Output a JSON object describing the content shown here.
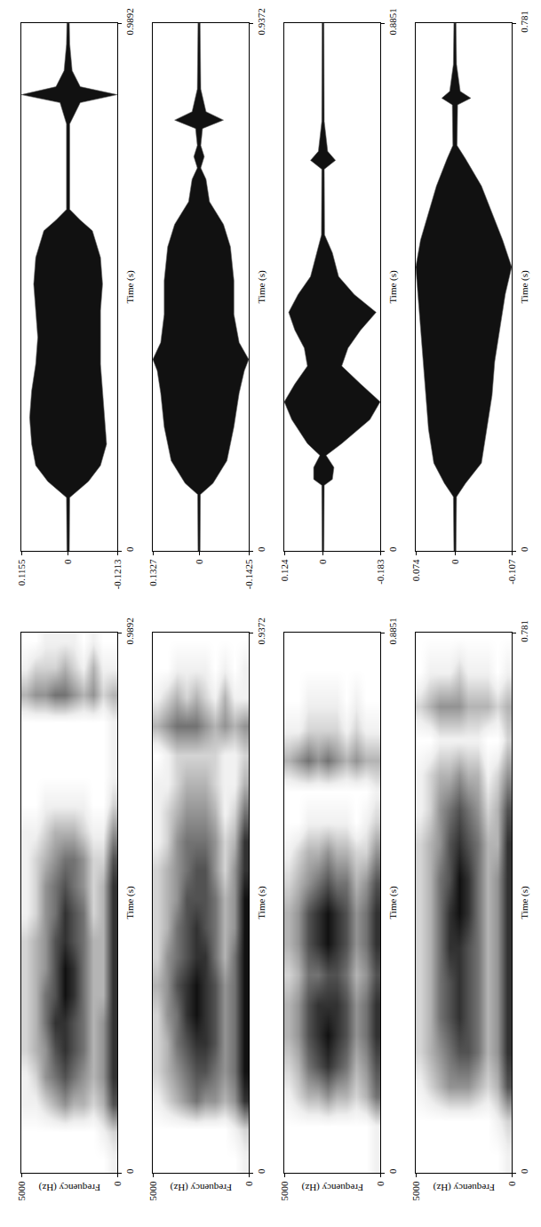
{
  "chart_data": [
    {
      "type": "waveform",
      "xlabel": "Time (s)",
      "color": "#111111",
      "x": [
        0,
        0.1,
        0.13,
        0.16,
        0.2,
        0.25,
        0.3,
        0.35,
        0.4,
        0.45,
        0.5,
        0.55,
        0.6,
        0.62,
        0.64,
        0.8,
        0.84,
        0.855,
        0.87,
        0.9,
        0.95,
        0.9892
      ],
      "upper": [
        0.003,
        0.004,
        0.05,
        0.08,
        0.09,
        0.095,
        0.09,
        0.08,
        0.075,
        0.08,
        0.085,
        0.08,
        0.06,
        0.03,
        0.004,
        0.004,
        0.02,
        0.1155,
        0.03,
        0.01,
        0.004,
        0.003
      ],
      "lower": [
        -0.003,
        -0.004,
        -0.05,
        -0.08,
        -0.095,
        -0.09,
        -0.085,
        -0.08,
        -0.08,
        -0.08,
        -0.085,
        -0.08,
        -0.06,
        -0.03,
        -0.004,
        -0.004,
        -0.03,
        -0.1213,
        -0.03,
        -0.01,
        -0.004,
        -0.003
      ],
      "xlim": [
        0,
        0.9892
      ],
      "xticks": [
        0,
        0.9892
      ],
      "ylim": [
        -0.1213,
        0.1155
      ],
      "yticks": [
        -0.1213,
        0,
        0.1155
      ]
    },
    {
      "type": "waveform",
      "xlabel": "Time (s)",
      "color": "#111111",
      "x": [
        0,
        0.1,
        0.12,
        0.16,
        0.22,
        0.28,
        0.32,
        0.34,
        0.37,
        0.42,
        0.48,
        0.54,
        0.58,
        0.62,
        0.66,
        0.68,
        0.7,
        0.72,
        0.75,
        0.765,
        0.78,
        0.82,
        0.9372
      ],
      "upper": [
        0.003,
        0.004,
        0.04,
        0.08,
        0.1,
        0.11,
        0.12,
        0.1327,
        0.11,
        0.1,
        0.1,
        0.09,
        0.07,
        0.03,
        0.02,
        0.005,
        0.015,
        0.005,
        0.01,
        0.07,
        0.02,
        0.005,
        0.003
      ],
      "lower": [
        -0.003,
        -0.004,
        -0.04,
        -0.08,
        -0.1,
        -0.115,
        -0.13,
        -0.1425,
        -0.115,
        -0.1,
        -0.1,
        -0.09,
        -0.07,
        -0.03,
        -0.02,
        -0.005,
        -0.015,
        -0.005,
        -0.01,
        -0.07,
        -0.02,
        -0.005,
        -0.003
      ],
      "xlim": [
        0,
        0.9372
      ],
      "xticks": [
        0,
        0.9372
      ],
      "ylim": [
        -0.1425,
        0.1327
      ],
      "yticks": [
        -0.1425,
        0,
        0.1327
      ]
    },
    {
      "type": "waveform",
      "xlabel": "Time (s)",
      "color": "#111111",
      "x": [
        0,
        0.11,
        0.12,
        0.14,
        0.16,
        0.18,
        0.22,
        0.25,
        0.28,
        0.31,
        0.34,
        0.37,
        0.4,
        0.43,
        0.46,
        0.5,
        0.53,
        0.64,
        0.655,
        0.67,
        0.72,
        0.8851
      ],
      "upper": [
        0.003,
        0.004,
        0.03,
        0.03,
        0.01,
        0.05,
        0.1,
        0.124,
        0.09,
        0.05,
        0.06,
        0.09,
        0.11,
        0.08,
        0.04,
        0.02,
        0.005,
        0.004,
        0.04,
        0.015,
        0.004,
        0.003
      ],
      "lower": [
        -0.003,
        -0.004,
        -0.03,
        -0.035,
        -0.01,
        -0.06,
        -0.15,
        -0.183,
        -0.12,
        -0.06,
        -0.08,
        -0.12,
        -0.17,
        -0.1,
        -0.05,
        -0.03,
        -0.005,
        -0.004,
        -0.04,
        -0.015,
        -0.004,
        -0.003
      ],
      "xlim": [
        0,
        0.8851
      ],
      "xticks": [
        0,
        0.8851
      ],
      "ylim": [
        -0.183,
        0.124
      ],
      "yticks": [
        -0.183,
        0,
        0.124
      ]
    },
    {
      "type": "waveform",
      "xlabel": "Time (s)",
      "color": "#111111",
      "x": [
        0,
        0.08,
        0.1,
        0.13,
        0.18,
        0.23,
        0.28,
        0.33,
        0.38,
        0.42,
        0.46,
        0.5,
        0.54,
        0.58,
        0.6,
        0.66,
        0.67,
        0.68,
        0.72,
        0.781
      ],
      "upper": [
        0.002,
        0.003,
        0.02,
        0.04,
        0.05,
        0.055,
        0.06,
        0.065,
        0.07,
        0.074,
        0.065,
        0.05,
        0.035,
        0.015,
        0.004,
        0.005,
        0.025,
        0.01,
        0.003,
        0.002
      ],
      "lower": [
        -0.002,
        -0.003,
        -0.02,
        -0.05,
        -0.06,
        -0.07,
        -0.075,
        -0.085,
        -0.095,
        -0.107,
        -0.09,
        -0.07,
        -0.05,
        -0.02,
        -0.004,
        -0.005,
        -0.03,
        -0.01,
        -0.003,
        -0.002
      ],
      "xlim": [
        0,
        0.781
      ],
      "xticks": [
        0,
        0.781
      ],
      "ylim": [
        -0.107,
        0.074
      ],
      "yticks": [
        -0.107,
        0,
        0.074
      ]
    },
    {
      "type": "spectrogram",
      "xlabel": "Time (s)",
      "ylabel": "Frequency (Hz)",
      "x": [
        0.025,
        0.075,
        0.125,
        0.175,
        0.225,
        0.275,
        0.325,
        0.375,
        0.425,
        0.475,
        0.525,
        0.575,
        0.625,
        0.675,
        0.725,
        0.775,
        0.825,
        0.875,
        0.925,
        0.975
      ],
      "y": [
        250,
        750,
        1250,
        1750,
        2250,
        2750,
        3250,
        3750,
        4250,
        4750
      ],
      "cells": [
        [
          1,
          0,
          0,
          0,
          0,
          0,
          0,
          0,
          0,
          0
        ],
        [
          2,
          1,
          0,
          0,
          0,
          0,
          0,
          0,
          0,
          0
        ],
        [
          6,
          3,
          2,
          3,
          3,
          4,
          3,
          2,
          1,
          1
        ],
        [
          7,
          4,
          3,
          4,
          5,
          6,
          5,
          4,
          2,
          1
        ],
        [
          7,
          4,
          3,
          5,
          6,
          7,
          6,
          4,
          3,
          2
        ],
        [
          7,
          4,
          3,
          5,
          6,
          7,
          7,
          5,
          3,
          2
        ],
        [
          7,
          3,
          3,
          5,
          7,
          8,
          6,
          5,
          3,
          2
        ],
        [
          7,
          3,
          3,
          5,
          7,
          8,
          6,
          4,
          3,
          2
        ],
        [
          7,
          3,
          3,
          5,
          6,
          7,
          6,
          4,
          3,
          2
        ],
        [
          7,
          3,
          2,
          5,
          6,
          7,
          5,
          4,
          2,
          1
        ],
        [
          7,
          3,
          2,
          4,
          5,
          6,
          5,
          4,
          2,
          1
        ],
        [
          6,
          2,
          2,
          4,
          5,
          5,
          4,
          3,
          2,
          1
        ],
        [
          4,
          1,
          1,
          2,
          3,
          3,
          3,
          2,
          1,
          1
        ],
        [
          2,
          0,
          0,
          1,
          1,
          1,
          1,
          1,
          0,
          0
        ],
        [
          1,
          0,
          0,
          0,
          0,
          0,
          0,
          0,
          0,
          0
        ],
        [
          1,
          0,
          0,
          0,
          0,
          0,
          0,
          0,
          0,
          0
        ],
        [
          1,
          0,
          0,
          0,
          0,
          0,
          0,
          0,
          0,
          0
        ],
        [
          3,
          2,
          4,
          3,
          4,
          5,
          5,
          4,
          4,
          3
        ],
        [
          1,
          1,
          3,
          1,
          2,
          3,
          2,
          2,
          2,
          1
        ],
        [
          0,
          0,
          1,
          0,
          1,
          1,
          1,
          1,
          0,
          0
        ]
      ],
      "xlim": [
        0,
        0.9892
      ],
      "xticks": [
        0,
        0.9892
      ],
      "ylim": [
        0,
        5000
      ],
      "yticks": [
        0,
        5000
      ]
    },
    {
      "type": "spectrogram",
      "xlabel": "Time (s)",
      "ylabel": "Frequency (Hz)",
      "x": [
        0.025,
        0.075,
        0.125,
        0.175,
        0.225,
        0.275,
        0.325,
        0.375,
        0.425,
        0.475,
        0.525,
        0.575,
        0.625,
        0.675,
        0.725,
        0.775,
        0.825,
        0.875,
        0.925
      ],
      "y": [
        250,
        750,
        1250,
        1750,
        2250,
        2750,
        3250,
        3750,
        4250,
        4750
      ],
      "cells": [
        [
          1,
          0,
          0,
          0,
          0,
          0,
          0,
          0,
          0,
          0
        ],
        [
          2,
          1,
          0,
          0,
          0,
          0,
          0,
          0,
          0,
          0
        ],
        [
          7,
          4,
          3,
          4,
          4,
          5,
          4,
          3,
          2,
          1
        ],
        [
          8,
          5,
          4,
          5,
          6,
          6,
          5,
          4,
          3,
          2
        ],
        [
          8,
          5,
          4,
          6,
          7,
          7,
          6,
          5,
          3,
          2
        ],
        [
          8,
          5,
          4,
          6,
          7,
          8,
          7,
          5,
          4,
          2
        ],
        [
          8,
          5,
          4,
          6,
          7,
          8,
          7,
          6,
          4,
          3
        ],
        [
          8,
          5,
          3,
          5,
          7,
          7,
          6,
          5,
          4,
          2
        ],
        [
          8,
          4,
          3,
          5,
          6,
          7,
          6,
          5,
          3,
          2
        ],
        [
          8,
          4,
          3,
          5,
          6,
          6,
          6,
          4,
          3,
          2
        ],
        [
          7,
          4,
          2,
          4,
          6,
          6,
          5,
          4,
          3,
          2
        ],
        [
          7,
          3,
          2,
          4,
          5,
          5,
          5,
          4,
          2,
          1
        ],
        [
          5,
          2,
          1,
          3,
          4,
          4,
          4,
          3,
          2,
          1
        ],
        [
          3,
          1,
          1,
          2,
          3,
          3,
          3,
          2,
          1,
          1
        ],
        [
          2,
          1,
          1,
          2,
          2,
          2,
          2,
          2,
          1,
          0
        ],
        [
          4,
          3,
          4,
          3,
          4,
          5,
          5,
          5,
          4,
          3
        ],
        [
          1,
          1,
          3,
          1,
          2,
          3,
          2,
          3,
          2,
          1
        ],
        [
          1,
          0,
          1,
          0,
          1,
          1,
          1,
          1,
          0,
          0
        ],
        [
          0,
          0,
          0,
          0,
          0,
          0,
          0,
          0,
          0,
          0
        ]
      ],
      "xlim": [
        0,
        0.9372
      ],
      "xticks": [
        0,
        0.9372
      ],
      "ylim": [
        0,
        5000
      ],
      "yticks": [
        0,
        5000
      ]
    },
    {
      "type": "spectrogram",
      "xlabel": "Time (s)",
      "ylabel": "Frequency (Hz)",
      "x": [
        0.025,
        0.075,
        0.125,
        0.175,
        0.225,
        0.275,
        0.325,
        0.375,
        0.425,
        0.475,
        0.525,
        0.575,
        0.625,
        0.675,
        0.725,
        0.775,
        0.825,
        0.875
      ],
      "y": [
        250,
        750,
        1250,
        1750,
        2250,
        2750,
        3250,
        3750,
        4250,
        4750
      ],
      "cells": [
        [
          1,
          0,
          0,
          0,
          0,
          0,
          0,
          0,
          0,
          0
        ],
        [
          1,
          0,
          0,
          0,
          0,
          0,
          0,
          0,
          0,
          0
        ],
        [
          5,
          3,
          2,
          3,
          3,
          4,
          3,
          3,
          2,
          1
        ],
        [
          6,
          4,
          3,
          5,
          6,
          7,
          6,
          5,
          3,
          2
        ],
        [
          7,
          5,
          4,
          6,
          7,
          8,
          7,
          6,
          4,
          3
        ],
        [
          7,
          5,
          4,
          6,
          7,
          7,
          7,
          6,
          4,
          3
        ],
        [
          6,
          4,
          3,
          5,
          6,
          6,
          5,
          5,
          3,
          2
        ],
        [
          7,
          5,
          4,
          6,
          7,
          8,
          7,
          6,
          4,
          3
        ],
        [
          7,
          5,
          4,
          6,
          7,
          8,
          7,
          6,
          4,
          3
        ],
        [
          6,
          4,
          3,
          5,
          5,
          6,
          5,
          4,
          3,
          2
        ],
        [
          4,
          2,
          2,
          3,
          3,
          4,
          3,
          3,
          2,
          1
        ],
        [
          2,
          1,
          0,
          1,
          1,
          1,
          1,
          1,
          0,
          0
        ],
        [
          1,
          0,
          0,
          0,
          0,
          0,
          0,
          0,
          0,
          0
        ],
        [
          3,
          3,
          4,
          3,
          4,
          5,
          4,
          5,
          4,
          3
        ],
        [
          1,
          1,
          2,
          1,
          2,
          2,
          2,
          2,
          1,
          1
        ],
        [
          0,
          0,
          1,
          0,
          1,
          1,
          1,
          1,
          0,
          0
        ],
        [
          0,
          0,
          0,
          0,
          0,
          0,
          0,
          0,
          0,
          0
        ],
        [
          0,
          0,
          0,
          0,
          0,
          0,
          0,
          0,
          0,
          0
        ]
      ],
      "xlim": [
        0,
        0.8851
      ],
      "xticks": [
        0,
        0.8851
      ],
      "ylim": [
        0,
        5000
      ],
      "yticks": [
        0,
        5000
      ]
    },
    {
      "type": "spectrogram",
      "xlabel": "Time (s)",
      "ylabel": "Frequency (Hz)",
      "x": [
        0.025,
        0.075,
        0.125,
        0.175,
        0.225,
        0.275,
        0.325,
        0.375,
        0.425,
        0.475,
        0.525,
        0.575,
        0.625,
        0.675,
        0.725,
        0.775
      ],
      "y": [
        250,
        750,
        1250,
        1750,
        2250,
        2750,
        3250,
        3750,
        4250,
        4750
      ],
      "cells": [
        [
          1,
          0,
          0,
          0,
          0,
          0,
          0,
          0,
          0,
          0
        ],
        [
          2,
          1,
          0,
          0,
          0,
          0,
          0,
          0,
          0,
          0
        ],
        [
          6,
          3,
          2,
          3,
          4,
          4,
          4,
          3,
          2,
          1
        ],
        [
          7,
          4,
          3,
          5,
          6,
          6,
          5,
          4,
          3,
          2
        ],
        [
          7,
          4,
          3,
          5,
          6,
          7,
          6,
          5,
          3,
          2
        ],
        [
          7,
          4,
          3,
          5,
          6,
          7,
          6,
          5,
          3,
          2
        ],
        [
          7,
          4,
          3,
          5,
          6,
          7,
          7,
          5,
          3,
          2
        ],
        [
          7,
          4,
          3,
          5,
          7,
          8,
          7,
          5,
          3,
          2
        ],
        [
          7,
          4,
          3,
          5,
          7,
          8,
          6,
          5,
          3,
          2
        ],
        [
          7,
          3,
          3,
          5,
          6,
          7,
          6,
          4,
          3,
          2
        ],
        [
          6,
          3,
          2,
          4,
          5,
          6,
          5,
          4,
          2,
          1
        ],
        [
          4,
          2,
          1,
          3,
          3,
          4,
          3,
          3,
          2,
          1
        ],
        [
          2,
          0,
          0,
          1,
          1,
          1,
          1,
          1,
          0,
          0
        ],
        [
          3,
          2,
          3,
          3,
          3,
          4,
          4,
          4,
          3,
          2
        ],
        [
          1,
          0,
          1,
          1,
          1,
          2,
          1,
          1,
          1,
          0
        ],
        [
          0,
          0,
          0,
          0,
          0,
          0,
          0,
          0,
          0,
          0
        ]
      ],
      "xlim": [
        0,
        0.781
      ],
      "xticks": [
        0,
        0.781
      ],
      "ylim": [
        0,
        5000
      ],
      "yticks": [
        0,
        5000
      ]
    }
  ]
}
